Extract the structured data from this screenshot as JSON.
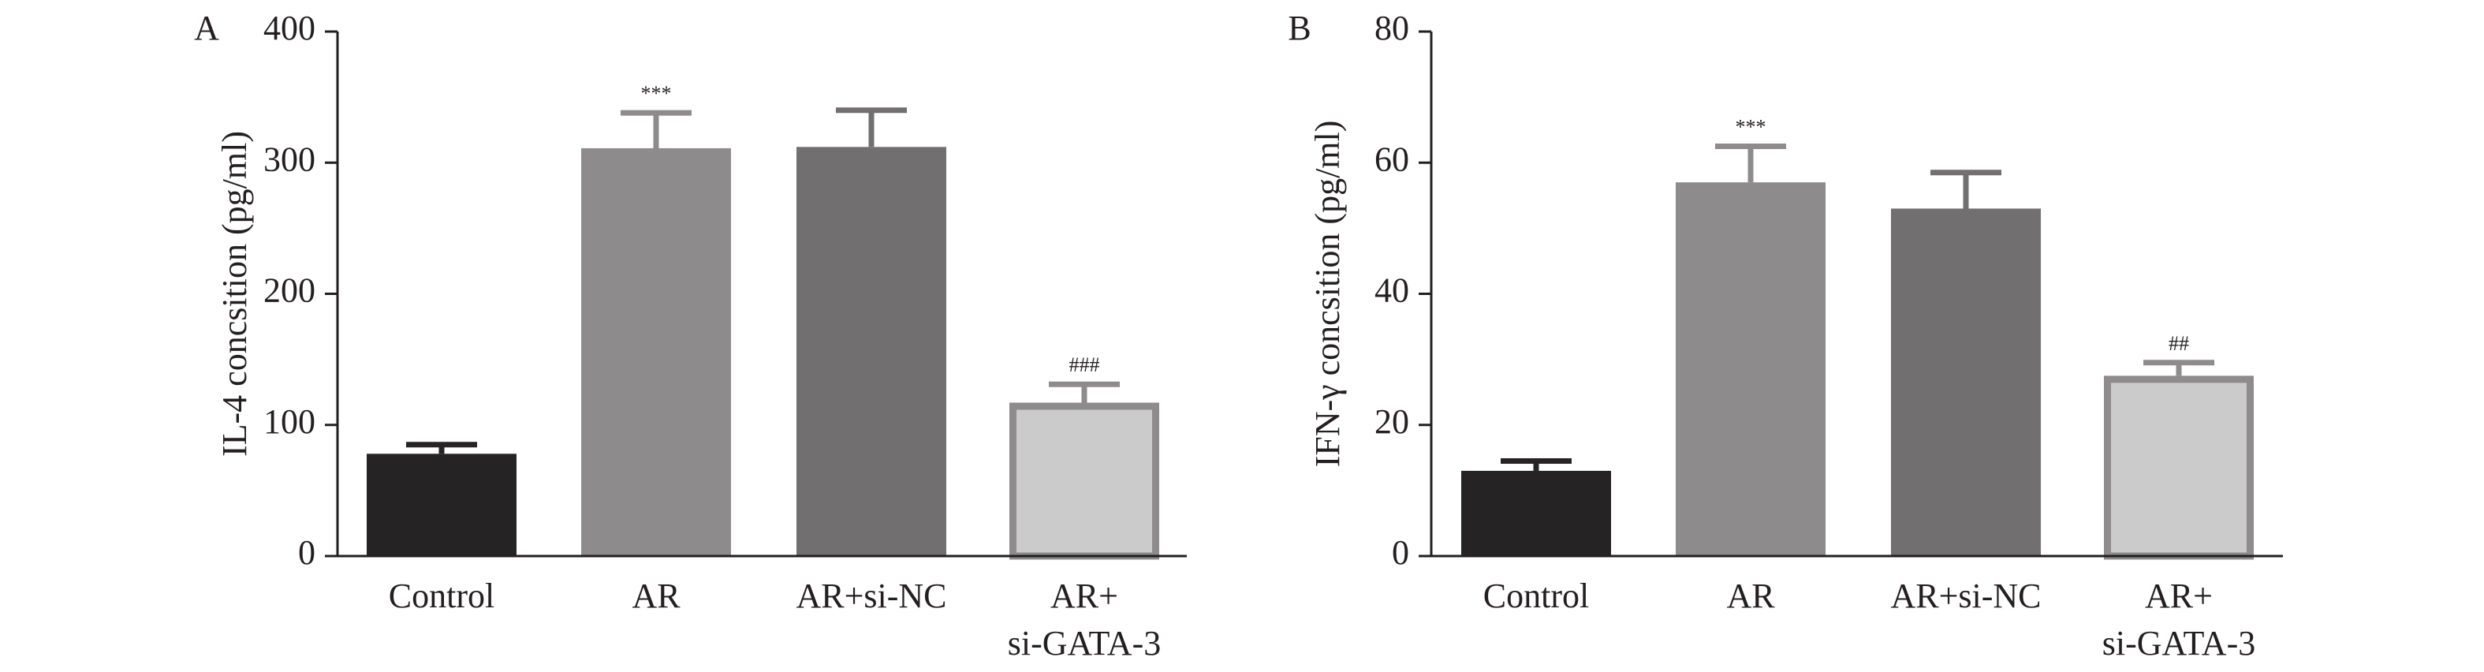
{
  "chart_data": [
    {
      "panel_label": "A",
      "type": "bar",
      "ylabel": "IL-4 concsition (pg/ml)",
      "ylim": [
        0,
        400
      ],
      "yticks": [
        0,
        100,
        200,
        300,
        400
      ],
      "categories": [
        {
          "lines": [
            "Control"
          ],
          "value": 78,
          "error": 7,
          "annotation": "",
          "fill": "#262324",
          "stroke": "#262324"
        },
        {
          "lines": [
            "AR"
          ],
          "value": 311,
          "error": 27,
          "annotation": "***",
          "fill": "#8d8b8c",
          "stroke": "#8d8b8c"
        },
        {
          "lines": [
            "AR+si-NC"
          ],
          "value": 312,
          "error": 28,
          "annotation": "",
          "fill": "#716f70",
          "stroke": "#716f70"
        },
        {
          "lines": [
            "AR+",
            "si-GATA-3"
          ],
          "value": 117,
          "error": 14,
          "annotation": "###",
          "fill": "#cbcbcb",
          "stroke": "#8d8b8c"
        }
      ]
    },
    {
      "panel_label": "B",
      "type": "bar",
      "ylabel": "IFN-γ concsition (pg/ml)",
      "ylim": [
        0,
        80
      ],
      "yticks": [
        0,
        20,
        40,
        60,
        80
      ],
      "categories": [
        {
          "lines": [
            "Control"
          ],
          "value": 13,
          "error": 1.5,
          "annotation": "",
          "fill": "#262324",
          "stroke": "#262324"
        },
        {
          "lines": [
            "AR"
          ],
          "value": 57,
          "error": 5.5,
          "annotation": "***",
          "fill": "#8d8b8c",
          "stroke": "#8d8b8c"
        },
        {
          "lines": [
            "AR+si-NC"
          ],
          "value": 53,
          "error": 5.5,
          "annotation": "",
          "fill": "#716f70",
          "stroke": "#716f70"
        },
        {
          "lines": [
            "AR+",
            "si-GATA-3"
          ],
          "value": 27.5,
          "error": 2,
          "annotation": "##",
          "fill": "#cbcbcb",
          "stroke": "#8d8b8c"
        }
      ]
    }
  ]
}
